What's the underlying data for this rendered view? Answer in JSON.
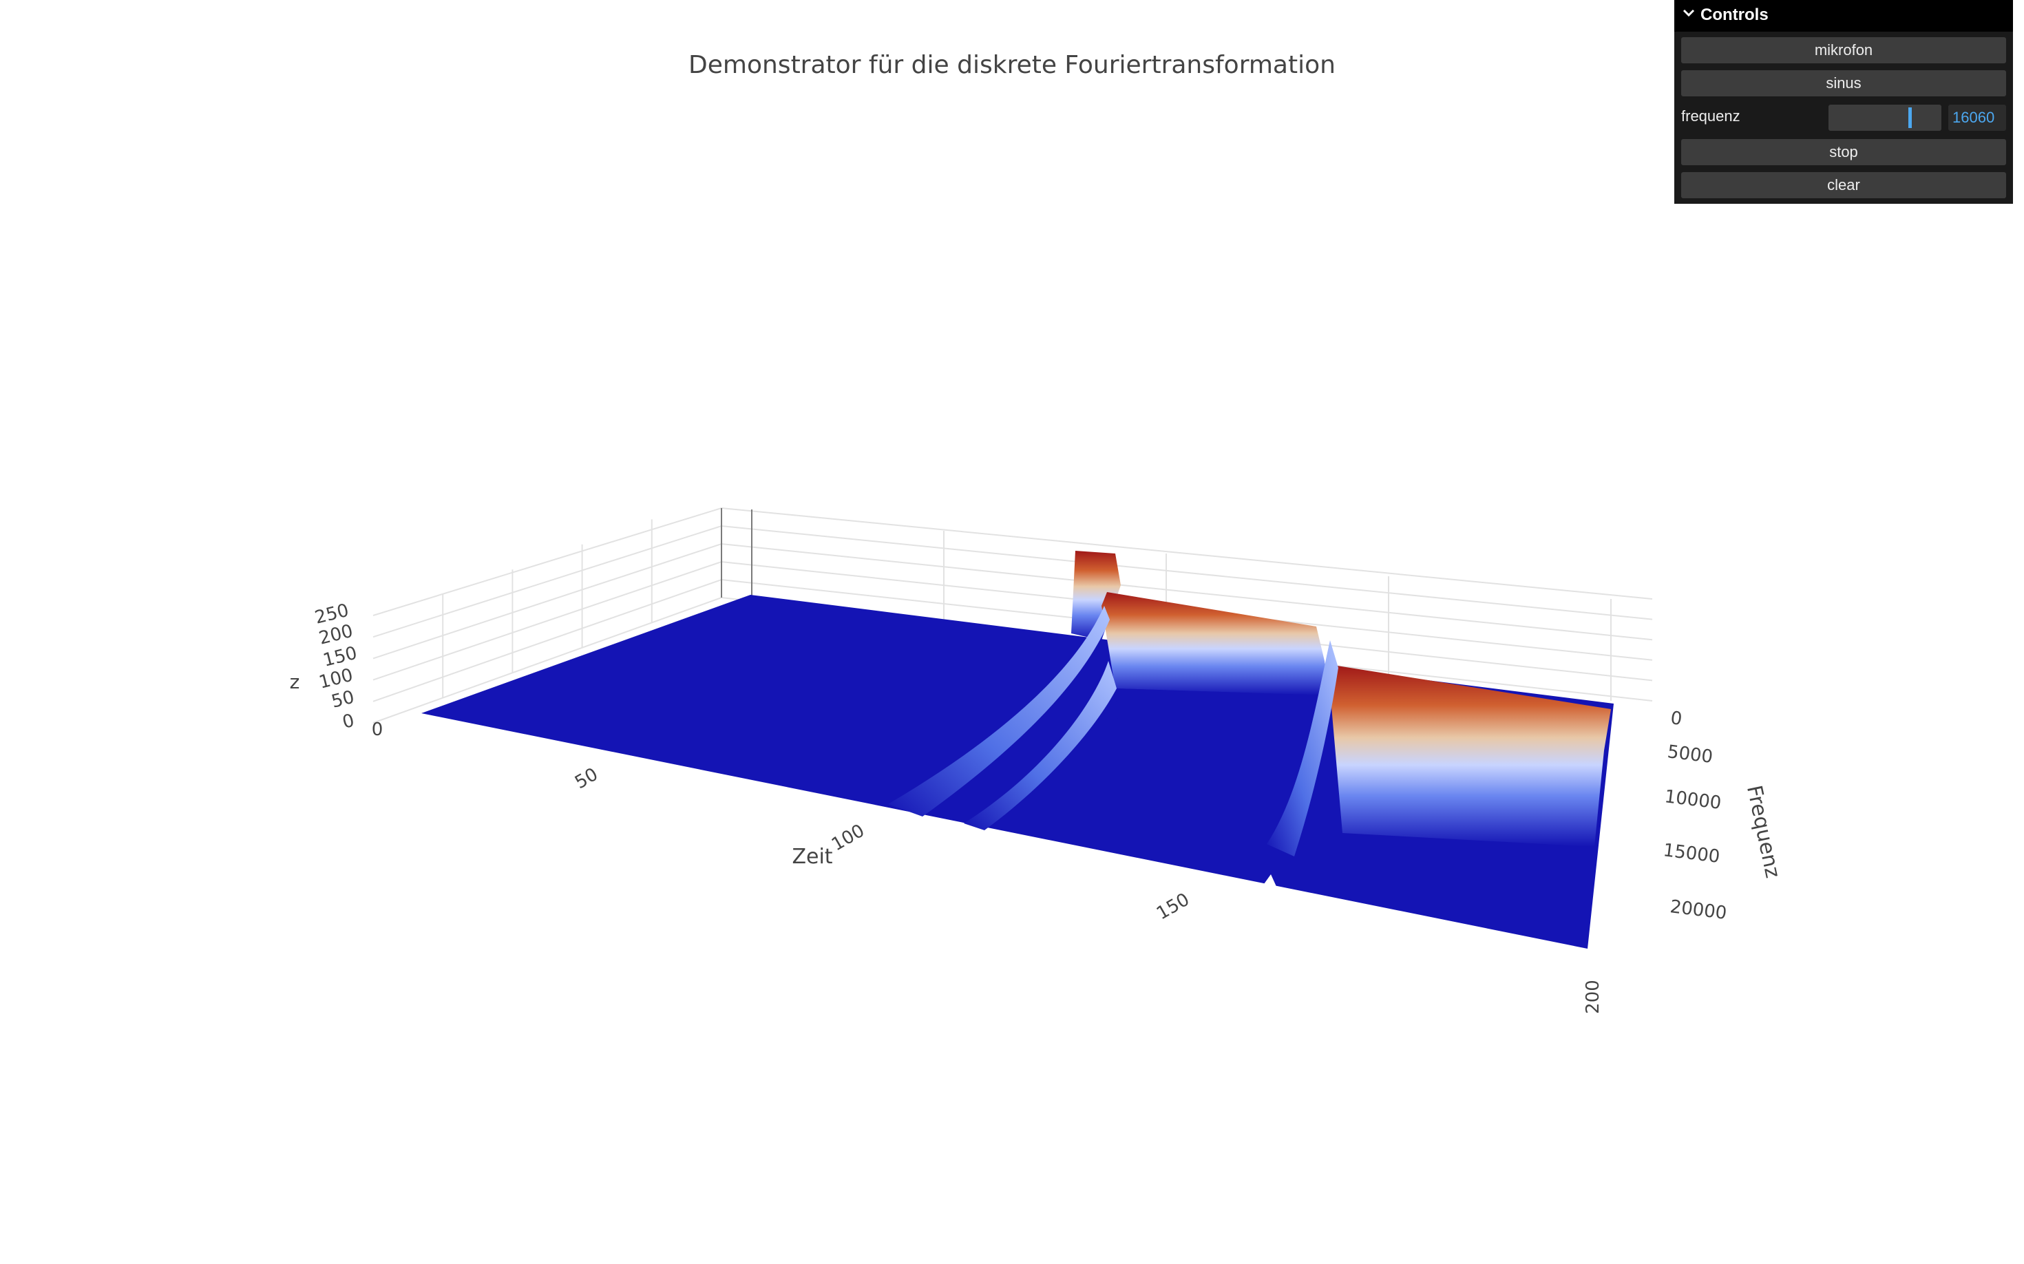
{
  "chart_data": {
    "type": "surface",
    "title": "Demonstrator für die diskrete Fouriertransformation",
    "xlabel": "Zeit",
    "ylabel": "Frequenz",
    "zlabel": "z",
    "xticks": [
      "0",
      "50",
      "100",
      "150",
      "200"
    ],
    "yticks": [
      "0",
      "5000",
      "10000",
      "15000",
      "20000"
    ],
    "zticks": [
      "0",
      "50",
      "100",
      "150",
      "200",
      "250"
    ],
    "xlim": [
      0,
      200
    ],
    "ylim": [
      0,
      22050
    ],
    "zlim": [
      0,
      250
    ],
    "colorscale": [
      "#1414b4",
      "#8ab0ff",
      "#f0e0d0",
      "#d06030",
      "#a01818"
    ],
    "grid": true,
    "ridges": [
      {
        "x_start": 0,
        "x_end": 100,
        "frequency": 0,
        "z": 0
      },
      {
        "x_start": 106,
        "x_end": 113,
        "frequency": 0,
        "z": 250
      },
      {
        "x_start": 112,
        "x_end": 152,
        "frequency": 10000,
        "z": 250
      },
      {
        "x_start": 152,
        "x_end": 200,
        "frequency": 16060,
        "z": 250
      }
    ]
  },
  "controls": {
    "header": "Controls",
    "mikrofon": "mikrofon",
    "sinus": "sinus",
    "frequenz_label": "frequenz",
    "frequenz_value": "16060",
    "frequenz_fraction": 0.73,
    "stop": "stop",
    "clear": "clear",
    "icon": "chevron-down-icon"
  }
}
